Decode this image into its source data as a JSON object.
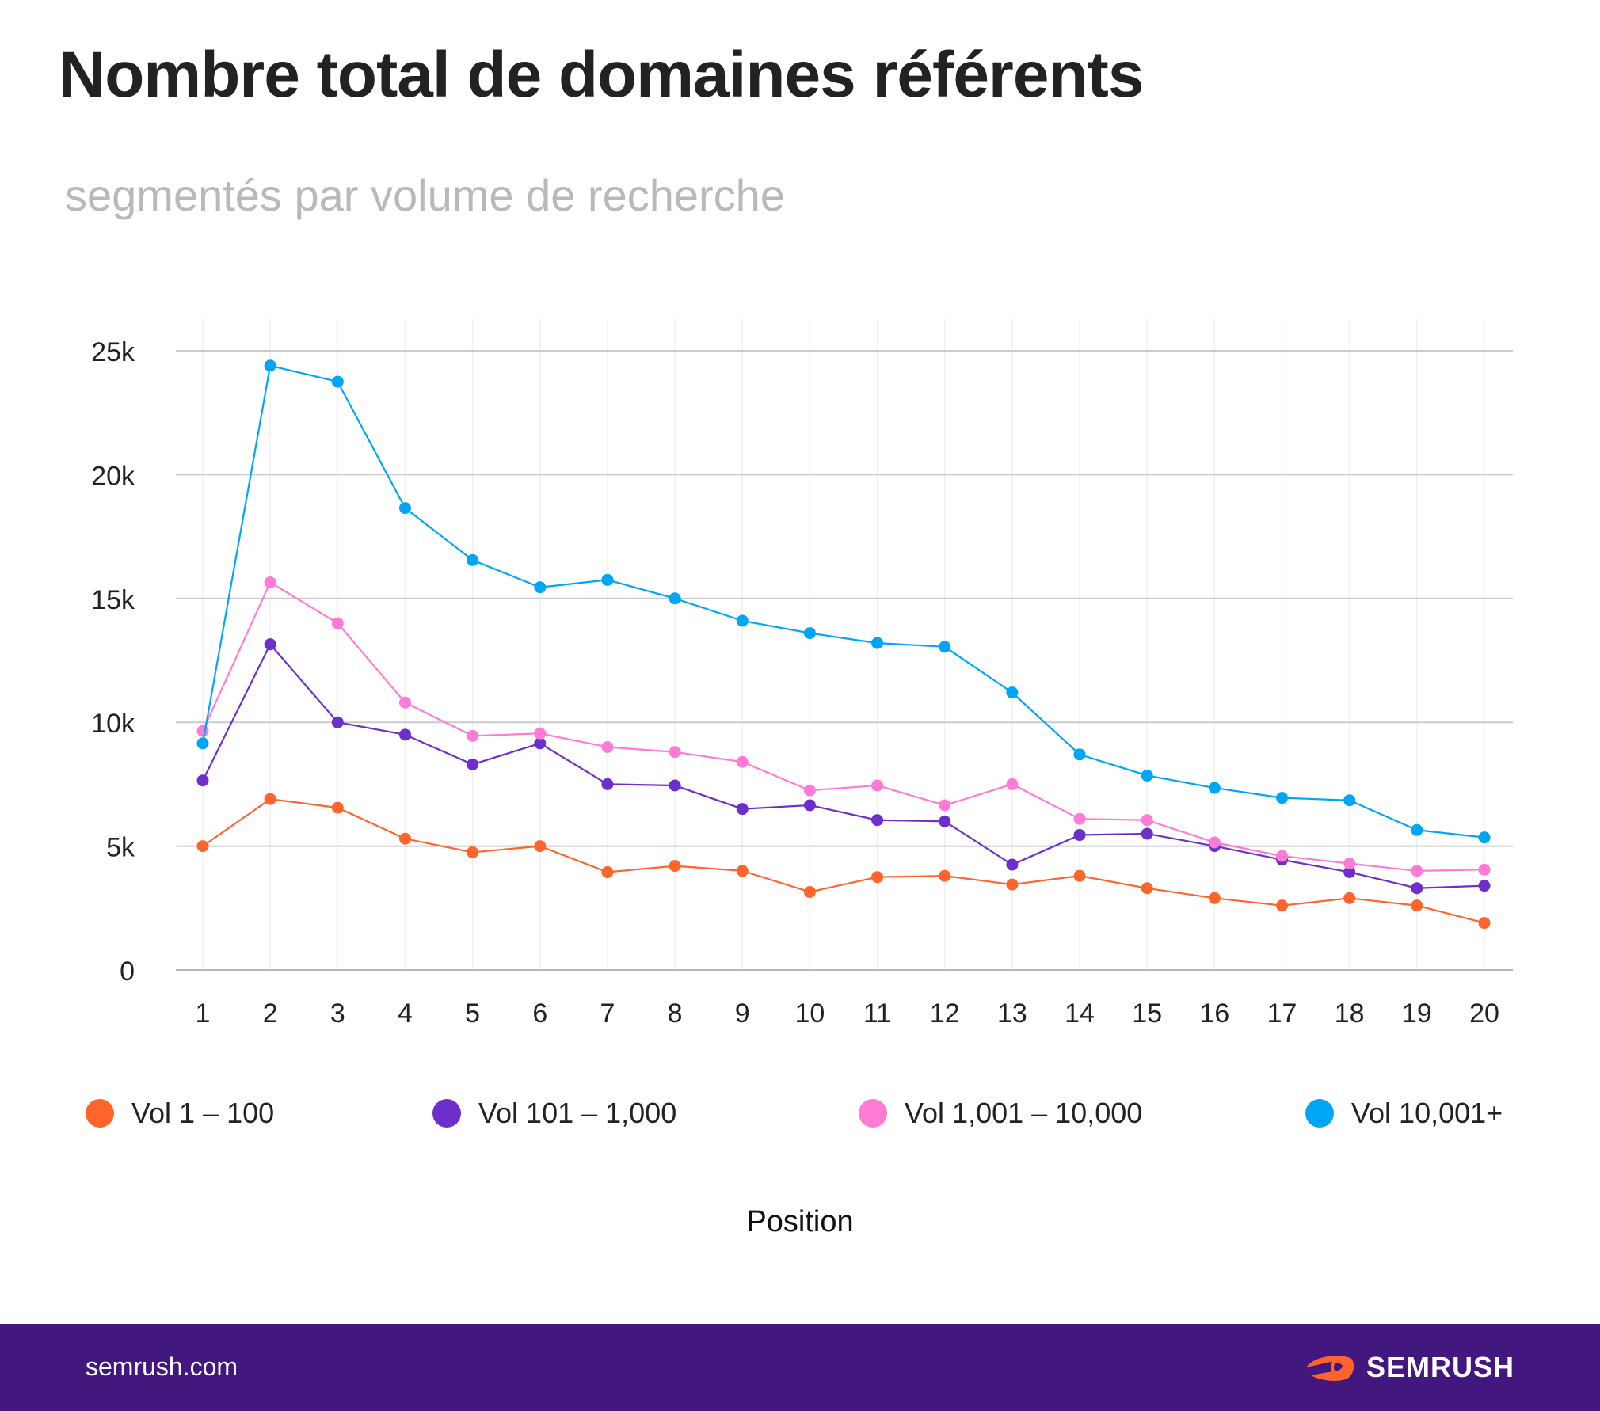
{
  "header": {
    "title": "Nombre total de domaines référents",
    "subtitle": "segmentés par volume de recherche"
  },
  "chart_data": {
    "type": "line",
    "xlabel": "Position",
    "ylabel": "",
    "categories": [
      "1",
      "2",
      "3",
      "4",
      "5",
      "6",
      "7",
      "8",
      "9",
      "10",
      "11",
      "12",
      "13",
      "14",
      "15",
      "16",
      "17",
      "18",
      "19",
      "20"
    ],
    "ylim": [
      0,
      25000
    ],
    "yticks": [
      0,
      5000,
      10000,
      15000,
      20000,
      25000
    ],
    "ytick_labels": [
      "0",
      "5k",
      "10k",
      "15k",
      "20k",
      "25k"
    ],
    "grid": "horizontal",
    "legend_position": "bottom",
    "series": [
      {
        "name": "Vol 1 – 100",
        "color": "#ff642d",
        "values": [
          5000,
          6900,
          6550,
          5300,
          4750,
          5000,
          3950,
          4200,
          4000,
          3150,
          3750,
          3800,
          3450,
          3800,
          3300,
          2900,
          2600,
          2900,
          2600,
          1900
        ]
      },
      {
        "name": "Vol 101 – 1,000",
        "color": "#6d2fcc",
        "values": [
          7650,
          13150,
          10000,
          9500,
          8300,
          9150,
          7500,
          7450,
          6500,
          6650,
          6050,
          6000,
          4250,
          5450,
          5500,
          5000,
          4450,
          3950,
          3300,
          3400
        ]
      },
      {
        "name": "Vol 1,001 – 10,000",
        "color": "#ff7bd5",
        "values": [
          9650,
          15650,
          14000,
          10800,
          9450,
          9550,
          9000,
          8800,
          8400,
          7250,
          7450,
          6650,
          7500,
          6100,
          6050,
          5150,
          4600,
          4300,
          4000,
          4050
        ]
      },
      {
        "name": "Vol 10,001+",
        "color": "#00a6f5",
        "values": [
          9150,
          24400,
          23750,
          18650,
          16550,
          15450,
          15750,
          15000,
          14100,
          13600,
          13200,
          13050,
          11200,
          8700,
          7850,
          7350,
          6950,
          6850,
          5650,
          5350
        ]
      }
    ]
  },
  "footer": {
    "url": "semrush.com",
    "brand": "SEMRUSH",
    "logo_icon": "semrush-fire-icon",
    "background": "#43187e"
  }
}
